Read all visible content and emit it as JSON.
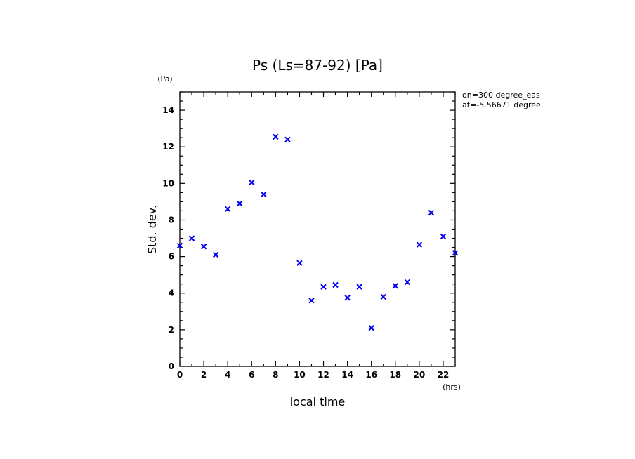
{
  "chart_data": {
    "type": "scatter",
    "title": "Ps (Ls=87-92) [Pa]",
    "xlabel": "local time",
    "xunit": "(hrs)",
    "ylabel": "Std. dev.",
    "yunit": "(Pa)",
    "xlim": [
      0,
      23
    ],
    "ylim": [
      0,
      15
    ],
    "x_ticks": [
      0,
      2,
      4,
      6,
      8,
      10,
      12,
      14,
      16,
      18,
      20,
      22
    ],
    "y_ticks": [
      0,
      2,
      4,
      6,
      8,
      10,
      12,
      14
    ],
    "grid": false,
    "marker_color": "#0000ee",
    "annotations": [
      "lon=300 degree_eas",
      "lat=-5.56671 degree"
    ],
    "x": [
      0,
      1,
      2,
      3,
      4,
      5,
      6,
      7,
      8,
      9,
      10,
      11,
      12,
      13,
      14,
      15,
      16,
      17,
      18,
      19,
      20,
      21,
      22,
      23
    ],
    "values": [
      6.6,
      7.0,
      6.55,
      6.1,
      8.6,
      8.9,
      10.05,
      9.4,
      12.55,
      12.4,
      5.65,
      3.6,
      4.35,
      4.45,
      3.75,
      4.35,
      2.1,
      3.8,
      4.4,
      4.6,
      6.65,
      8.4,
      7.1,
      6.2
    ]
  }
}
